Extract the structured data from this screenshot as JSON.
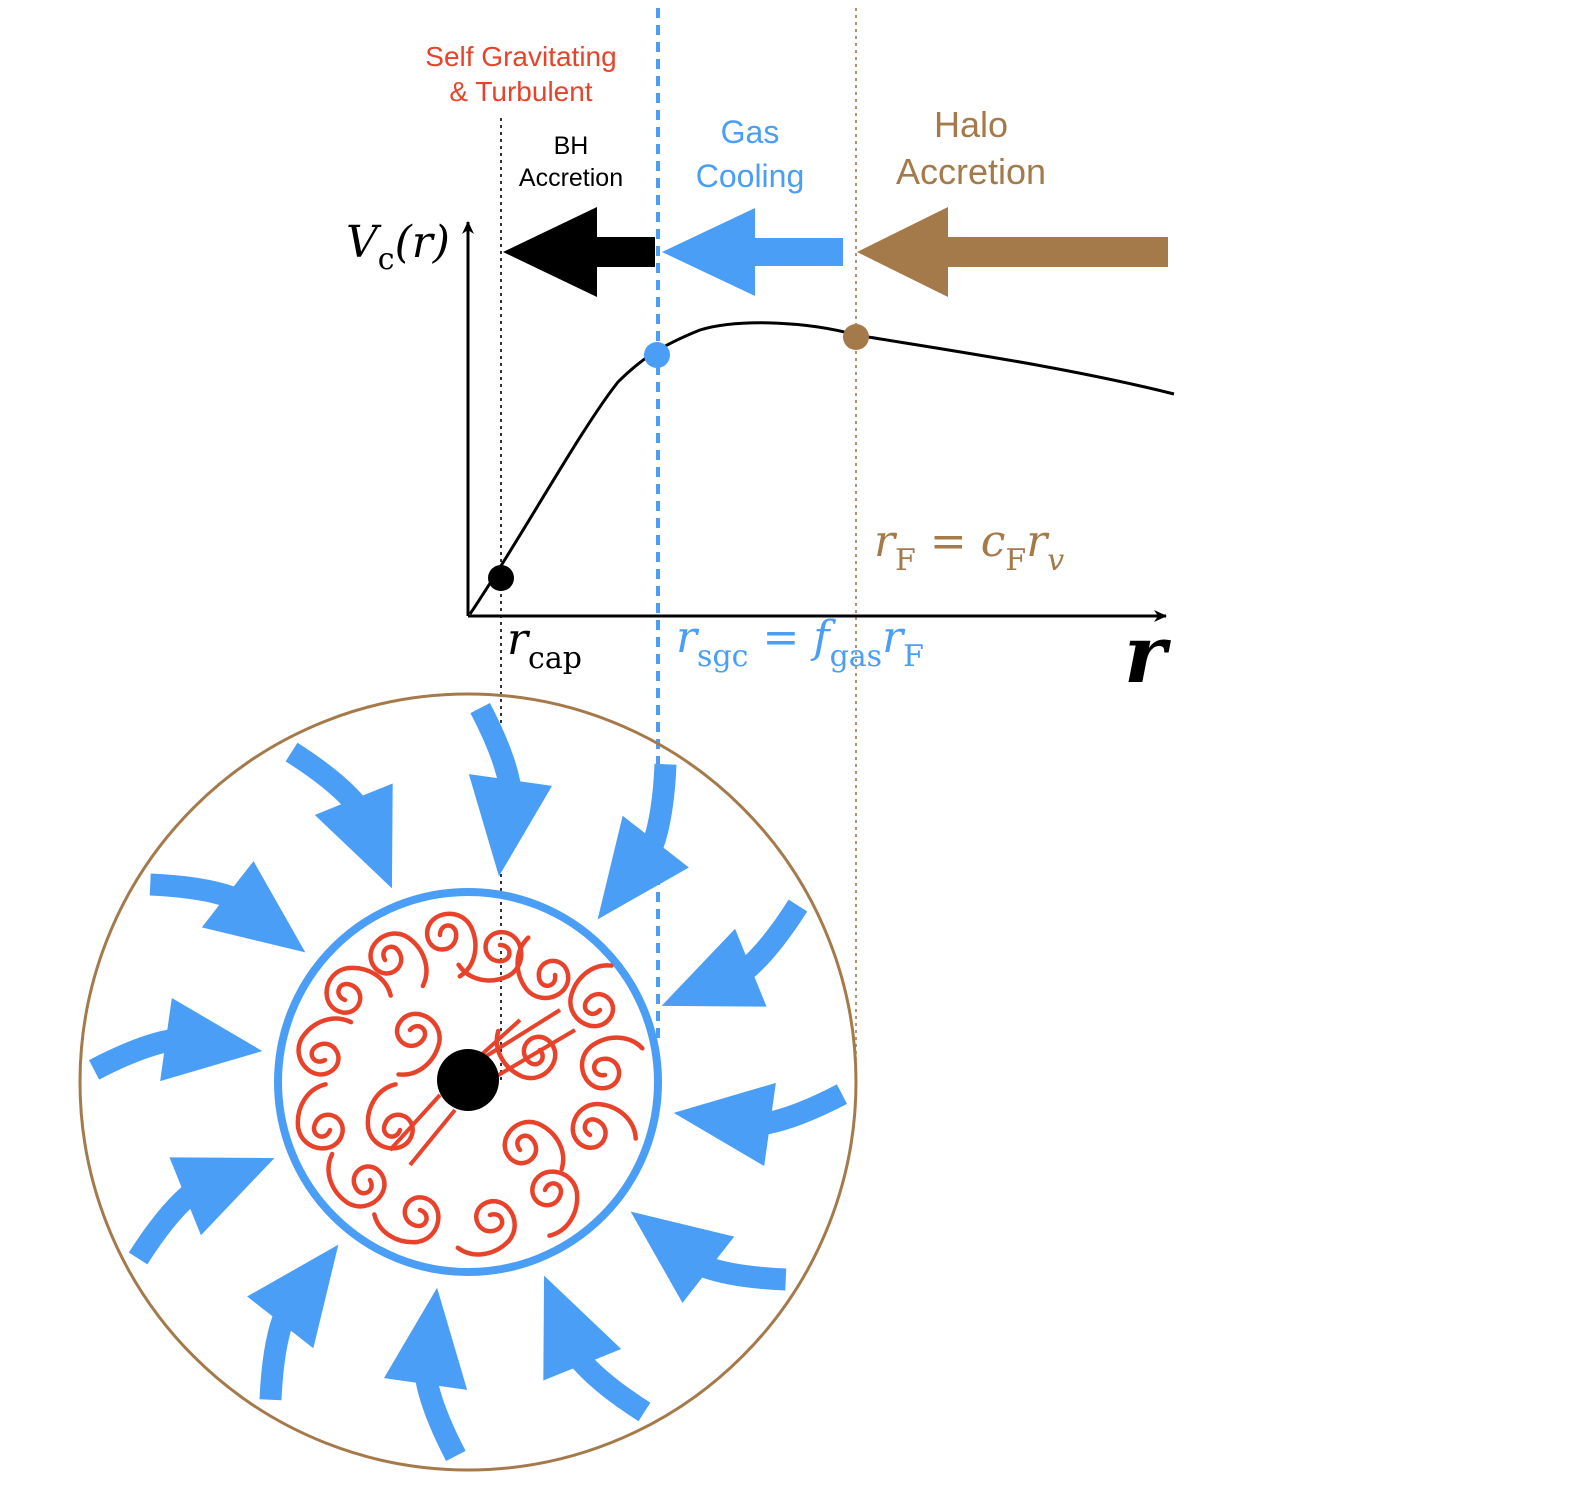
{
  "colors": {
    "red": "#e8432a",
    "blue": "#4a9ef5",
    "brown": "#a47a4a",
    "black": "#000000"
  },
  "regions": {
    "self_grav_line1": "Self Gravitating",
    "self_grav_line2": "& Turbulent",
    "bh_line1": "BH",
    "bh_line2": "Accretion",
    "gas_line1": "Gas",
    "gas_line2": "Cooling",
    "halo_line1": "Halo",
    "halo_line2": "Accretion"
  },
  "axes": {
    "y_label_main": "V",
    "y_label_sub": "c",
    "y_label_arg": "(r)",
    "x_label": "r"
  },
  "radii": {
    "cap": {
      "r": "r",
      "sub": "cap"
    },
    "sgc": {
      "r": "r",
      "sub": "sgc",
      "eq": " = ",
      "f": "f",
      "fsub": "gas",
      "r2": "r",
      "r2sub": "F"
    },
    "F": {
      "r": "r",
      "sub": "F",
      "eq": " = ",
      "c": "c",
      "csub": "F",
      "r2": "r",
      "r2sub": "v"
    }
  },
  "icons": [
    "curved-inflow-arrow-icon",
    "turbulent-swirl-icon",
    "black-hole-icon"
  ]
}
